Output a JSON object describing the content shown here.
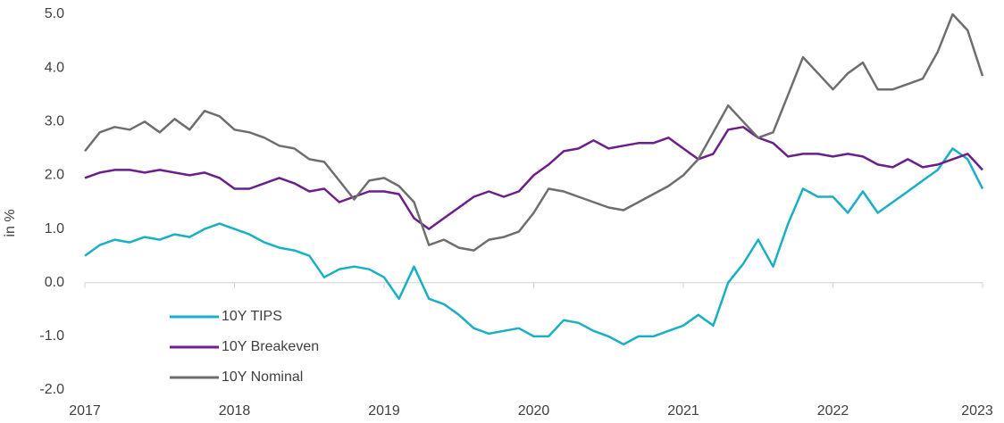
{
  "chart_data": {
    "type": "line",
    "y_label": "in %",
    "x": [
      2017,
      2017.1,
      2017.2,
      2017.3,
      2017.4,
      2017.5,
      2017.6,
      2017.7,
      2017.8,
      2017.9,
      2018,
      2018.1,
      2018.2,
      2018.3,
      2018.4,
      2018.5,
      2018.6,
      2018.7,
      2018.8,
      2018.9,
      2019,
      2019.1,
      2019.2,
      2019.3,
      2019.4,
      2019.5,
      2019.6,
      2019.7,
      2019.8,
      2019.9,
      2020,
      2020.1,
      2020.2,
      2020.3,
      2020.4,
      2020.5,
      2020.6,
      2020.7,
      2020.8,
      2020.9,
      2021,
      2021.1,
      2021.2,
      2021.3,
      2021.4,
      2021.5,
      2021.6,
      2021.7,
      2021.8,
      2021.9,
      2022,
      2022.1,
      2022.2,
      2022.3,
      2022.4,
      2022.5,
      2022.6,
      2022.7,
      2022.8,
      2022.9,
      2023
    ],
    "series": [
      {
        "name": "10Y TIPS",
        "color": "#1ab0c4",
        "values": [
          0.5,
          0.7,
          0.8,
          0.75,
          0.85,
          0.8,
          0.9,
          0.85,
          1.0,
          1.1,
          1.0,
          0.9,
          0.75,
          0.65,
          0.6,
          0.5,
          0.1,
          0.25,
          0.3,
          0.25,
          0.1,
          -0.3,
          0.3,
          -0.3,
          -0.4,
          -0.6,
          -0.85,
          -0.95,
          -0.9,
          -0.85,
          -1.0,
          -1.0,
          -0.7,
          -0.75,
          -0.9,
          -1.0,
          -1.15,
          -1.0,
          -1.0,
          -0.9,
          -0.8,
          -0.6,
          -0.8,
          0.0,
          0.35,
          0.8,
          0.3,
          1.1,
          1.75,
          1.6,
          1.6,
          1.3,
          1.7,
          1.3,
          1.5,
          1.7,
          1.9,
          2.1,
          2.5,
          2.3,
          1.75
        ]
      },
      {
        "name": "10Y Breakeven",
        "color": "#6b1f8c",
        "values": [
          1.95,
          2.05,
          2.1,
          2.1,
          2.05,
          2.1,
          2.05,
          2.0,
          2.05,
          1.95,
          1.75,
          1.75,
          1.85,
          1.95,
          1.85,
          1.7,
          1.75,
          1.5,
          1.6,
          1.7,
          1.7,
          1.65,
          1.2,
          1.0,
          1.2,
          1.4,
          1.6,
          1.7,
          1.6,
          1.7,
          2.0,
          2.2,
          2.45,
          2.5,
          2.65,
          2.5,
          2.55,
          2.6,
          2.6,
          2.7,
          2.5,
          2.3,
          2.4,
          2.85,
          2.9,
          2.7,
          2.6,
          2.35,
          2.4,
          2.4,
          2.35,
          2.4,
          2.35,
          2.2,
          2.15,
          2.3,
          2.15,
          2.2,
          2.3,
          2.4,
          2.1
        ]
      },
      {
        "name": "10Y Nominal",
        "color": "#6e6e6e",
        "values": [
          2.45,
          2.8,
          2.9,
          2.85,
          3.0,
          2.8,
          3.05,
          2.85,
          3.2,
          3.1,
          2.85,
          2.8,
          2.7,
          2.55,
          2.5,
          2.3,
          2.25,
          1.9,
          1.55,
          1.9,
          1.95,
          1.8,
          1.5,
          0.7,
          0.8,
          0.65,
          0.6,
          0.8,
          0.85,
          0.95,
          1.3,
          1.75,
          1.7,
          1.6,
          1.5,
          1.4,
          1.35,
          1.5,
          1.65,
          1.8,
          2.0,
          2.3,
          2.8,
          3.3,
          3.0,
          2.7,
          2.8,
          3.5,
          4.2,
          3.9,
          3.6,
          3.9,
          4.1,
          3.6,
          3.6,
          3.7,
          3.8,
          4.3,
          5.0,
          4.7,
          3.85
        ]
      }
    ],
    "xlim": [
      2017,
      2023
    ],
    "xticks": [
      2017,
      2018,
      2019,
      2020,
      2021,
      2022,
      2023
    ],
    "ylim": [
      -2,
      5
    ],
    "yticks": [
      {
        "value": 5,
        "label": "5.0"
      },
      {
        "value": 4,
        "label": "4.0"
      },
      {
        "value": 3,
        "label": "3.0"
      },
      {
        "value": 2,
        "label": "2.0"
      },
      {
        "value": 1,
        "label": "1.0"
      },
      {
        "value": 0,
        "label": "0.0"
      },
      {
        "value": -1,
        "label": "-1.0"
      },
      {
        "value": -2,
        "label": "-2.0"
      }
    ],
    "legend": "lower left"
  }
}
